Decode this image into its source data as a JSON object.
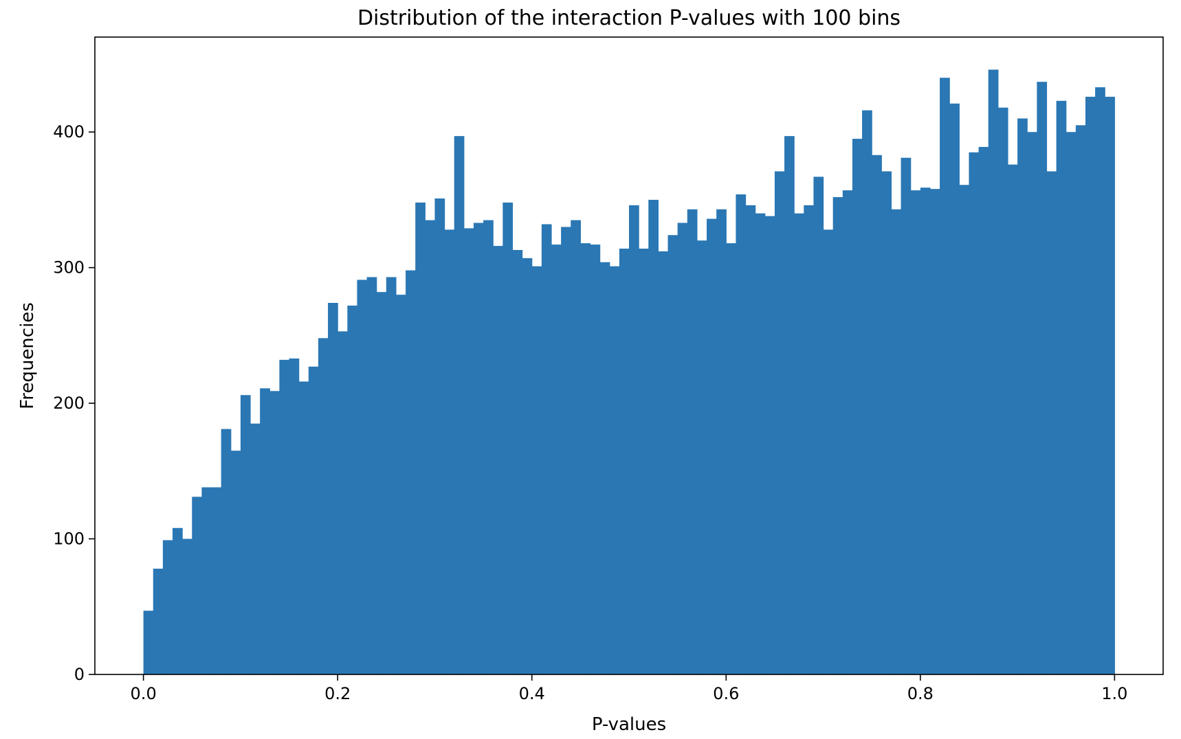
{
  "chart_data": {
    "type": "bar",
    "title": "Distribution of the interaction P-values with 100 bins",
    "xlabel": "P-values",
    "ylabel": "Frequencies",
    "xlim": [
      -0.05,
      1.05
    ],
    "ylim": [
      0,
      470
    ],
    "grid": false,
    "bar_color": "#2a77b4",
    "bins": 100,
    "bin_range": [
      0.0,
      1.0
    ],
    "xticks": [
      0.0,
      0.2,
      0.4,
      0.6,
      0.8,
      1.0
    ],
    "xtick_labels": [
      "0.0",
      "0.2",
      "0.4",
      "0.6",
      "0.8",
      "1.0"
    ],
    "yticks": [
      0,
      100,
      200,
      300,
      400
    ],
    "ytick_labels": [
      "0",
      "100",
      "200",
      "300",
      "400"
    ],
    "values": [
      47,
      78,
      99,
      108,
      100,
      131,
      138,
      138,
      181,
      165,
      206,
      185,
      211,
      209,
      232,
      233,
      216,
      227,
      248,
      274,
      253,
      272,
      291,
      293,
      282,
      293,
      280,
      298,
      348,
      335,
      351,
      328,
      397,
      329,
      333,
      335,
      316,
      348,
      313,
      307,
      301,
      332,
      317,
      330,
      335,
      318,
      317,
      304,
      301,
      314,
      346,
      314,
      350,
      312,
      324,
      333,
      343,
      320,
      336,
      343,
      318,
      354,
      346,
      340,
      338,
      371,
      397,
      340,
      346,
      367,
      328,
      352,
      357,
      395,
      416,
      383,
      371,
      343,
      381,
      357,
      359,
      358,
      440,
      421,
      361,
      385,
      389,
      446,
      418,
      376,
      410,
      400,
      437,
      371,
      423,
      400,
      405,
      426,
      433,
      426
    ]
  }
}
